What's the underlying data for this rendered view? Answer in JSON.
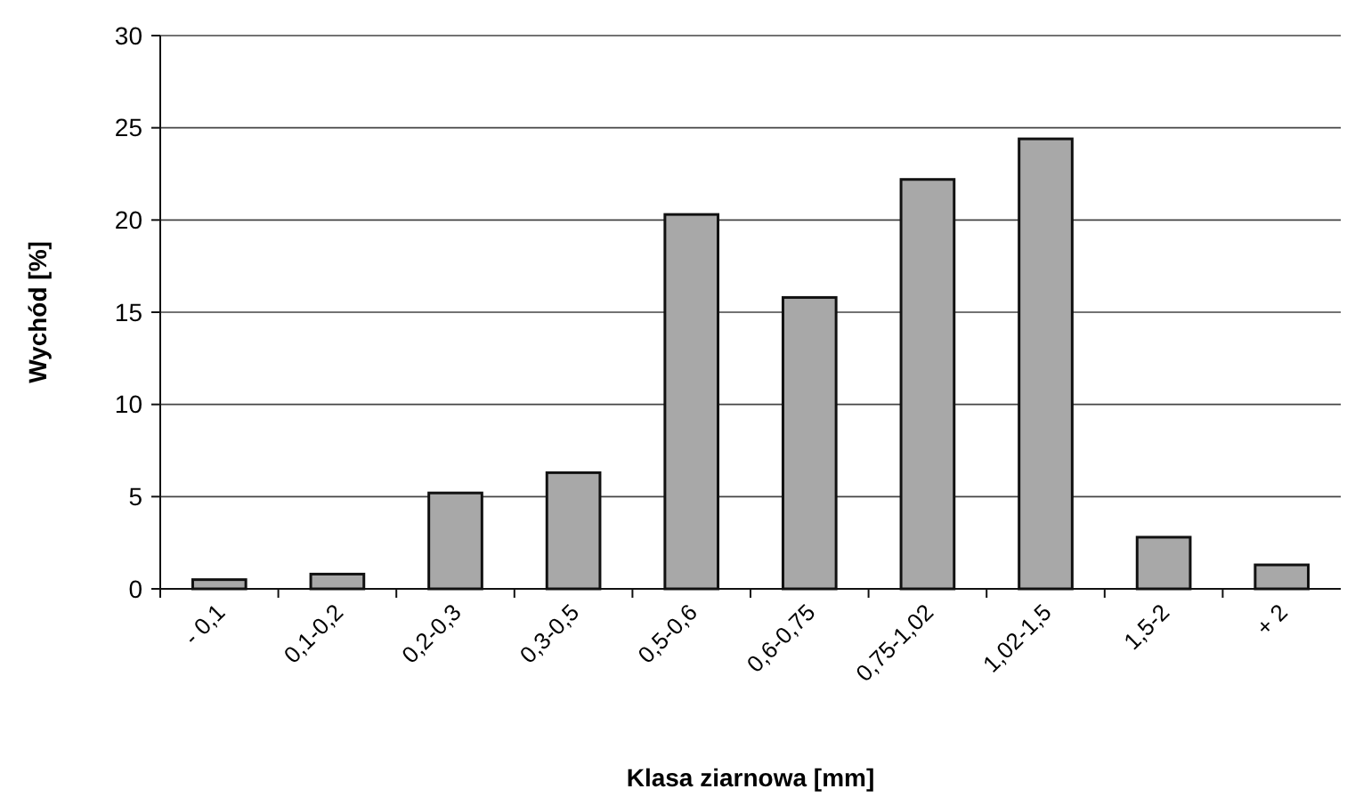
{
  "chart_data": {
    "type": "bar",
    "xlabel": "Klasa ziarnowa [mm]",
    "ylabel": "Wychód [%]",
    "categories": [
      "- 0,1",
      "0,1-0,2",
      "0,2-0,3",
      "0,3-0,5",
      "0,5-0,6",
      "0,6-0,75",
      "0,75-1,02",
      "1,02-1,5",
      "1,5-2",
      "+ 2"
    ],
    "values": [
      0.5,
      0.8,
      5.2,
      6.3,
      20.3,
      15.8,
      22.2,
      24.4,
      2.8,
      1.3
    ],
    "color": "#a8a8a8",
    "ylim": [
      0,
      30
    ],
    "yticks": [
      0,
      5,
      10,
      15,
      20,
      25,
      30
    ],
    "grid": "y"
  }
}
